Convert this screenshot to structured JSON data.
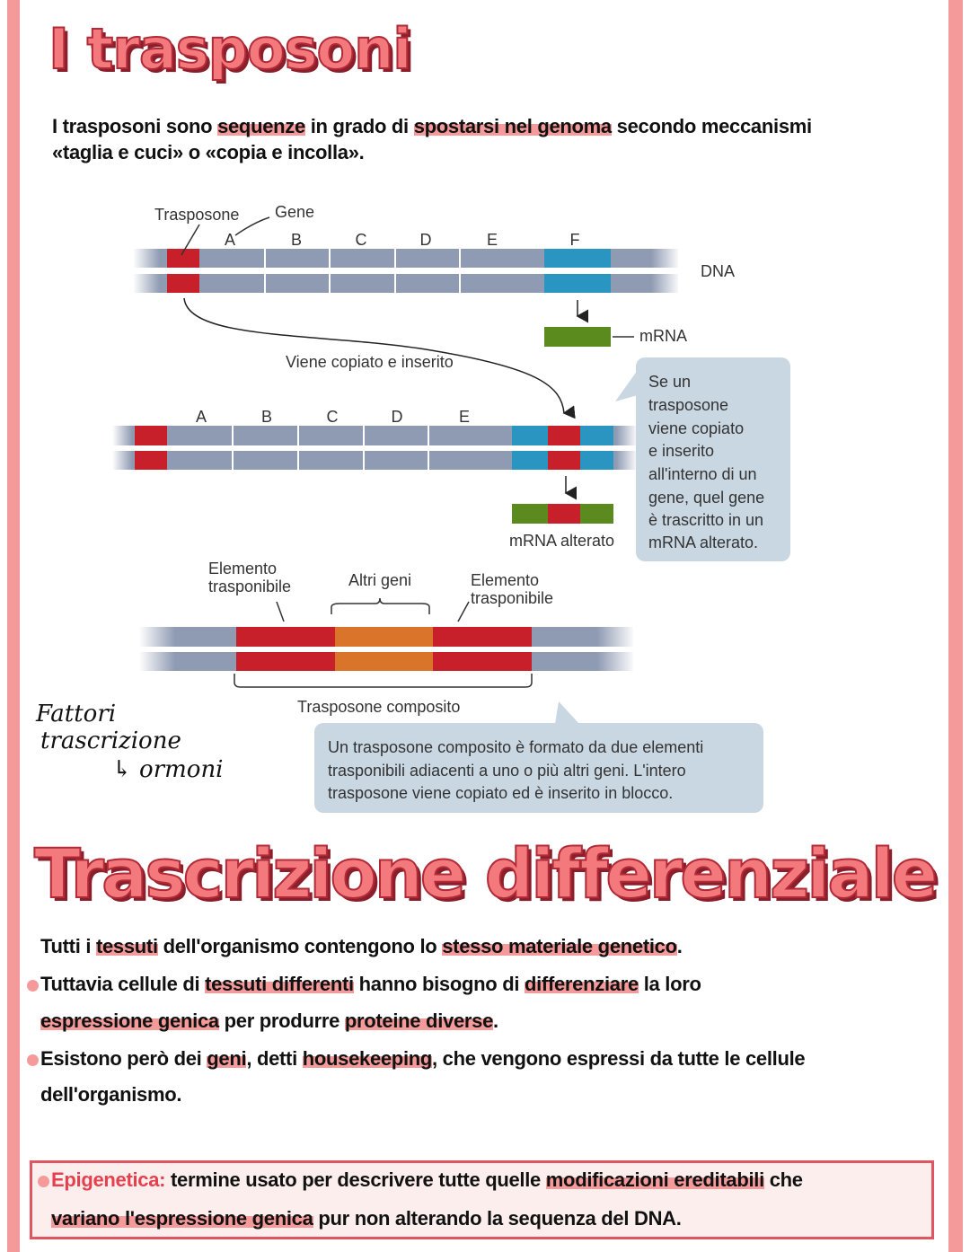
{
  "section1": {
    "title": "I trasposoni",
    "intro": [
      [
        {
          "t": "I trasposoni sono "
        },
        {
          "t": "sequenze",
          "hl": true
        },
        {
          "t": " in grado di "
        },
        {
          "t": "spostarsi nel genoma",
          "hl": true
        },
        {
          "t": " secondo meccanismi"
        }
      ],
      [
        {
          "t": "«taglia e cuci» o «copia e incolla»."
        }
      ]
    ]
  },
  "diagram": {
    "label_trasposone": "Trasposone",
    "label_gene": "Gene",
    "genes_row1": [
      "A",
      "B",
      "C",
      "D",
      "E",
      "F"
    ],
    "genes_row2": [
      "A",
      "B",
      "C",
      "D",
      "E"
    ],
    "label_dna": "DNA",
    "label_mrna": "mRNA",
    "label_copied": "Viene copiato e inserito",
    "label_mrna_altered": "mRNA alterato",
    "callout1": [
      "Se un",
      "trasposone",
      "viene copiato",
      "e inserito",
      "all'interno di un",
      "gene, quel gene",
      "è trascritto in un",
      "mRNA alterato."
    ],
    "label_element_left": [
      "Elemento",
      "trasponibile"
    ],
    "label_other_genes": "Altri geni",
    "label_element_right": [
      "Elemento",
      "trasponibile"
    ],
    "label_composite": "Trasposone composito",
    "callout2": [
      "Un trasposone composito è formato da due elementi",
      "trasponibili adiacenti a uno o più altri geni. L'intero",
      "trasposone viene copiato ed è inserito in blocco."
    ],
    "colors": {
      "dna": "#8f9bb3",
      "transposon": "#c8202a",
      "gene_f": "#2a95c0",
      "mrna": "#5b8a1e",
      "other_genes": "#d9742a",
      "callout": "#c9d7e2"
    }
  },
  "handwritten_note": [
    "Fattori",
    "trascrizione",
    "↳ ormoni"
  ],
  "section2": {
    "title": "Trascrizione differenziale",
    "lines": [
      [
        {
          "t": "Tutti i "
        },
        {
          "t": "tessuti",
          "hl": true
        },
        {
          "t": " dell'organismo contengono lo "
        },
        {
          "t": "stesso materiale genetico",
          "hl": true
        },
        {
          "t": "."
        }
      ],
      [
        {
          "t": "Tuttavia cellule di "
        },
        {
          "t": "tessuti differenti",
          "hl": true
        },
        {
          "t": " hanno bisogno di "
        },
        {
          "t": "differenziare",
          "hl": true
        },
        {
          "t": " la loro"
        }
      ],
      [
        {
          "t": "espressione genica",
          "hl": true
        },
        {
          "t": " per produrre "
        },
        {
          "t": "proteine diverse",
          "hl": true
        },
        {
          "t": "."
        }
      ],
      [
        {
          "t": "Esistono però dei "
        },
        {
          "t": "geni",
          "hl": true
        },
        {
          "t": ", detti "
        },
        {
          "t": "housekeeping",
          "hl": true
        },
        {
          "t": ", che vengono espressi da tutte le cellule"
        }
      ],
      [
        {
          "t": "dell'organismo."
        }
      ]
    ],
    "epigenetics": [
      [
        {
          "t": "Epigenetica:",
          "red": true
        },
        {
          "t": " termine usato per descrivere tutte quelle "
        },
        {
          "t": "modificazioni ereditabili",
          "hl": true
        },
        {
          "t": " che"
        }
      ],
      [
        {
          "t": "variano l'espressione genica",
          "hl": true
        },
        {
          "t": " pur non alterando la sequenza del DNA."
        }
      ]
    ]
  },
  "colors": {
    "accent": "#f59a9a",
    "title_fill": "#f4797c",
    "box_border": "#e05560"
  }
}
